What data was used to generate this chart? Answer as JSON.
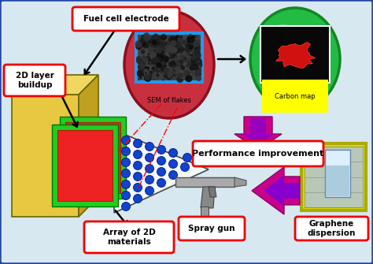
{
  "bg_color": "#d8e8f0",
  "border_color": "#2244aa",
  "box_edge": "#ee0000",
  "box_face": "#ffffff",
  "gold_front": "#e8c840",
  "gold_top": "#f0d860",
  "gold_right": "#c0a020",
  "green_layer": "#22cc22",
  "red_layer": "#ee2222",
  "blue_dot": "#1144cc",
  "sem_oval": "#cc3344",
  "carbon_oval": "#22bb44",
  "arrow_black": "#000000",
  "arrow_purple": "#8800bb",
  "arrow_magenta": "#cc0066",
  "yellow_label": "#ffff00",
  "labels": {
    "fuel_cell": "Fuel cell electrode",
    "layer_buildup": "2D layer\nbuildup",
    "sem": "SEM of flakes",
    "carbon_map": "Carbon map",
    "performance": "Performance improvement",
    "spray_gun": "Spray gun",
    "graphene": "Graphene\ndispersion",
    "array_2d": "Array of 2D\nmaterials"
  }
}
